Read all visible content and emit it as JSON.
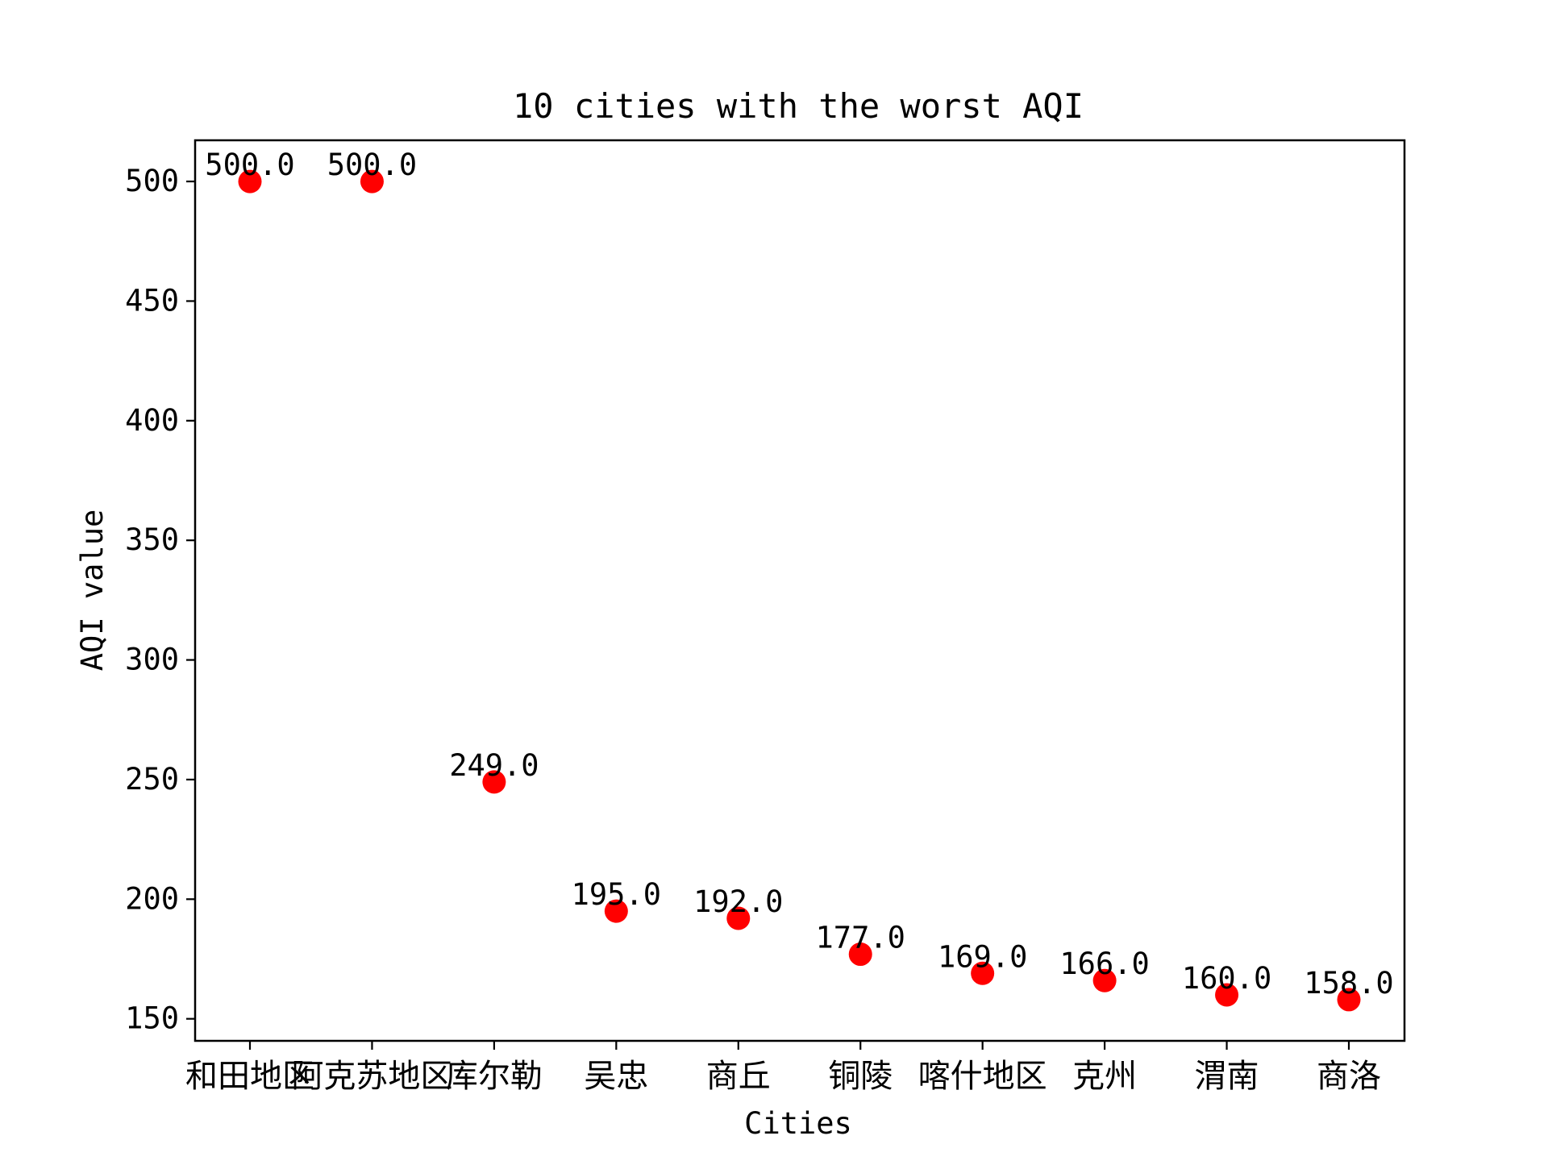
{
  "chart_data": {
    "type": "scatter",
    "title": "10 cities with the worst AQI",
    "xlabel": "Cities",
    "ylabel": "AQI value",
    "categories": [
      "和田地区",
      "阿克苏地区",
      "库尔勒",
      "吴忠",
      "商丘",
      "铜陵",
      "喀什地区",
      "克州",
      "渭南",
      "商洛"
    ],
    "values": [
      500.0,
      500.0,
      249.0,
      195.0,
      192.0,
      177.0,
      169.0,
      166.0,
      160.0,
      158.0
    ],
    "data_labels": [
      "500.0",
      "500.0",
      "249.0",
      "195.0",
      "192.0",
      "177.0",
      "169.0",
      "166.0",
      "160.0",
      "158.0"
    ],
    "ylim": [
      140.79,
      517.21
    ],
    "yticks": [
      150,
      200,
      250,
      300,
      350,
      400,
      450,
      500
    ],
    "ytick_labels": [
      "150",
      "200",
      "250",
      "300",
      "350",
      "400",
      "450",
      "500"
    ],
    "marker_color": "#ff0000",
    "grid": false,
    "legend": "none"
  }
}
